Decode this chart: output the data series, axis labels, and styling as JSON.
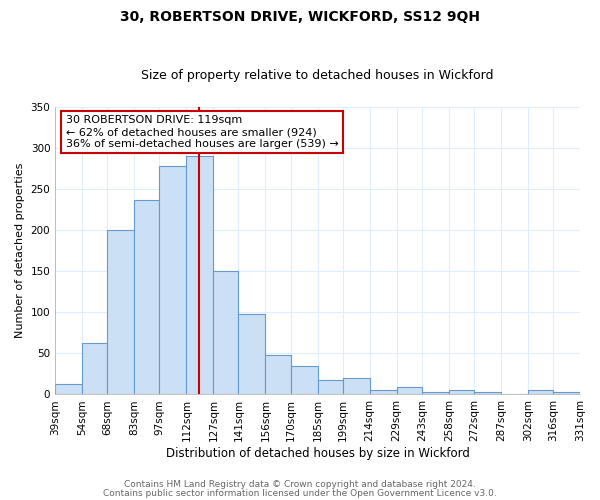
{
  "title": "30, ROBERTSON DRIVE, WICKFORD, SS12 9QH",
  "subtitle": "Size of property relative to detached houses in Wickford",
  "xlabel": "Distribution of detached houses by size in Wickford",
  "ylabel": "Number of detached properties",
  "bins": [
    39,
    54,
    68,
    83,
    97,
    112,
    127,
    141,
    156,
    170,
    185,
    199,
    214,
    229,
    243,
    258,
    272,
    287,
    302,
    316,
    331
  ],
  "bar_heights": [
    13,
    63,
    200,
    237,
    278,
    290,
    150,
    98,
    48,
    35,
    18,
    20,
    5,
    9,
    3,
    6,
    3,
    0,
    5,
    3
  ],
  "bar_color": "#cce0f5",
  "bar_edge_color": "#6699cc",
  "grid_color": "#ddeeff",
  "ylim": [
    0,
    350
  ],
  "yticks": [
    0,
    50,
    100,
    150,
    200,
    250,
    300,
    350
  ],
  "property_line_x": 119,
  "property_line_color": "#cc0000",
  "annotation_title": "30 ROBERTSON DRIVE: 119sqm",
  "annotation_line1": "← 62% of detached houses are smaller (924)",
  "annotation_line2": "36% of semi-detached houses are larger (539) →",
  "annotation_box_color": "#ffffff",
  "annotation_box_edge": "#cc0000",
  "footer1": "Contains HM Land Registry data © Crown copyright and database right 2024.",
  "footer2": "Contains public sector information licensed under the Open Government Licence v3.0.",
  "title_fontsize": 10,
  "subtitle_fontsize": 9,
  "xlabel_fontsize": 8.5,
  "ylabel_fontsize": 8,
  "tick_fontsize": 7.5,
  "annotation_fontsize": 8,
  "footer_fontsize": 6.5,
  "background_color": "#ffffff"
}
